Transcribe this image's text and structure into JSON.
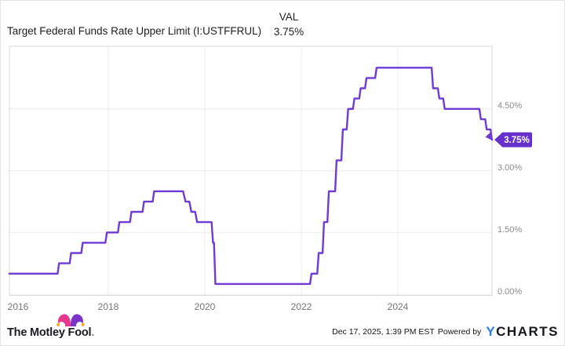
{
  "header": {
    "title": "Target Federal Funds Rate Upper Limit (I:USTFFRUL)",
    "val_label": "VAL",
    "val_value": "3.75%"
  },
  "chart_data": {
    "type": "line",
    "title": "Target Federal Funds Rate Upper Limit (I:USTFFRUL)",
    "unit": "percent",
    "current_value": "3.75%",
    "xlim": [
      2015.95,
      2025.97
    ],
    "ylim": [
      0,
      6.0
    ],
    "grid": true,
    "legend_position": "none",
    "y_ticks": [
      {
        "v": 4.5,
        "label": "4.50%"
      },
      {
        "v": 3.0,
        "label": "3.00%"
      },
      {
        "v": 1.5,
        "label": "1.50%"
      },
      {
        "v": 0.0,
        "label": "0.00%"
      }
    ],
    "x_ticks": [
      {
        "t": 2016,
        "label": "2016"
      },
      {
        "t": 2018,
        "label": "2018"
      },
      {
        "t": 2020,
        "label": "2020"
      },
      {
        "t": 2022,
        "label": "2022"
      },
      {
        "t": 2024,
        "label": "2024"
      }
    ],
    "points": [
      [
        2015.95,
        0.5
      ],
      [
        2016.95,
        0.5
      ],
      [
        2016.98,
        0.75
      ],
      [
        2017.2,
        0.75
      ],
      [
        2017.23,
        1.0
      ],
      [
        2017.44,
        1.0
      ],
      [
        2017.47,
        1.25
      ],
      [
        2017.94,
        1.25
      ],
      [
        2017.97,
        1.5
      ],
      [
        2018.2,
        1.5
      ],
      [
        2018.23,
        1.75
      ],
      [
        2018.45,
        1.75
      ],
      [
        2018.48,
        2.0
      ],
      [
        2018.71,
        2.0
      ],
      [
        2018.74,
        2.25
      ],
      [
        2018.92,
        2.25
      ],
      [
        2018.95,
        2.5
      ],
      [
        2019.55,
        2.5
      ],
      [
        2019.6,
        2.25
      ],
      [
        2019.68,
        2.25
      ],
      [
        2019.72,
        2.0
      ],
      [
        2019.8,
        2.0
      ],
      [
        2019.84,
        1.75
      ],
      [
        2020.14,
        1.75
      ],
      [
        2020.17,
        1.25
      ],
      [
        2020.19,
        1.25
      ],
      [
        2020.22,
        0.25
      ],
      [
        2022.18,
        0.25
      ],
      [
        2022.21,
        0.5
      ],
      [
        2022.33,
        0.5
      ],
      [
        2022.36,
        1.0
      ],
      [
        2022.44,
        1.0
      ],
      [
        2022.47,
        1.75
      ],
      [
        2022.54,
        1.75
      ],
      [
        2022.57,
        2.5
      ],
      [
        2022.7,
        2.5
      ],
      [
        2022.73,
        3.25
      ],
      [
        2022.83,
        3.25
      ],
      [
        2022.86,
        4.0
      ],
      [
        2022.94,
        4.0
      ],
      [
        2022.97,
        4.5
      ],
      [
        2023.07,
        4.5
      ],
      [
        2023.1,
        4.75
      ],
      [
        2023.2,
        4.75
      ],
      [
        2023.23,
        5.0
      ],
      [
        2023.32,
        5.0
      ],
      [
        2023.35,
        5.25
      ],
      [
        2023.53,
        5.25
      ],
      [
        2023.56,
        5.5
      ],
      [
        2024.7,
        5.5
      ],
      [
        2024.73,
        5.0
      ],
      [
        2024.83,
        5.0
      ],
      [
        2024.86,
        4.75
      ],
      [
        2024.94,
        4.75
      ],
      [
        2024.97,
        4.5
      ],
      [
        2025.69,
        4.5
      ],
      [
        2025.72,
        4.25
      ],
      [
        2025.81,
        4.25
      ],
      [
        2025.84,
        4.0
      ],
      [
        2025.92,
        4.0
      ],
      [
        2025.95,
        3.75
      ],
      [
        2025.96,
        3.75
      ]
    ],
    "badge": {
      "label": "3.75%"
    },
    "colors": {
      "line": "#6F3BD4",
      "badge": "#6630CC",
      "badge_text": "#ffffff",
      "grid": "#ececec",
      "border": "#d9d9d9",
      "y_label": "#8b8b8b",
      "x_label": "#757575"
    }
  },
  "footer": {
    "brand": "The Motley Fool",
    "brand_dot": ".",
    "timestamp": "Dec 17, 2025, 1:39 PM EST",
    "powered_by": "Powered by",
    "ycharts_y": "Y",
    "ycharts_rest": "CHARTS"
  }
}
